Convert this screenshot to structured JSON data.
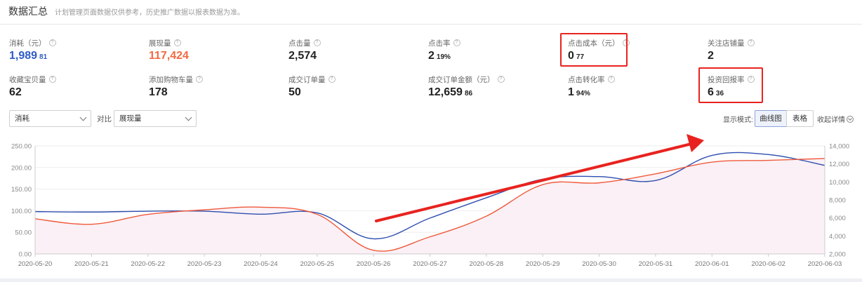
{
  "header": {
    "title": "数据汇总",
    "note": "计划管理页面数据仅供参考，历史推广数据以报表数据为准。"
  },
  "metrics": [
    {
      "label": "消耗（元）",
      "int": "1,989",
      "dec": "81"
    },
    {
      "label": "展现量",
      "int": "117,424",
      "dec": ""
    },
    {
      "label": "点击量",
      "int": "2,574",
      "dec": ""
    },
    {
      "label": "点击率",
      "int": "2",
      "dec": "19%"
    },
    {
      "label": "点击成本（元）",
      "int": "0",
      "dec": "77"
    },
    {
      "label": "关注店铺量",
      "int": "2",
      "dec": ""
    },
    {
      "label": "收藏宝贝量",
      "int": "62",
      "dec": ""
    },
    {
      "label": "添加购物车量",
      "int": "178",
      "dec": ""
    },
    {
      "label": "成交订单量",
      "int": "50",
      "dec": ""
    },
    {
      "label": "成交订单金额（元）",
      "int": "12,659",
      "dec": "86"
    },
    {
      "label": "点击转化率",
      "int": "1",
      "dec": "94%"
    },
    {
      "label": "投资回报率",
      "int": "6",
      "dec": "36"
    }
  ],
  "controls": {
    "metric_select": "消耗",
    "compare_label": "对比",
    "compare_select": "展现量",
    "mode_label": "显示模式:",
    "mode_curve": "曲线图",
    "mode_table": "表格",
    "collapse": "收起详情"
  },
  "colors": {
    "blue_series": "#2f4fb0",
    "orange_series": "#ef5a3c",
    "arrow": "#e8231f"
  },
  "chart_data": {
    "type": "line",
    "x": [
      "2020-05-20",
      "2020-05-21",
      "2020-05-22",
      "2020-05-23",
      "2020-05-24",
      "2020-05-25",
      "2020-05-26",
      "2020-05-27",
      "2020-05-28",
      "2020-05-29",
      "2020-05-30",
      "2020-05-31",
      "2020-06-01",
      "2020-06-02",
      "2020-06-03"
    ],
    "yleft_ticks": [
      "0.00",
      "50.00",
      "100.00",
      "150.00",
      "200.00",
      "250.00"
    ],
    "yleft_range": [
      0,
      250
    ],
    "yright_ticks": [
      "2,000",
      "4,000",
      "6,000",
      "8,000",
      "10,000",
      "12,000",
      "14,000"
    ],
    "yright_range": [
      2000,
      14000
    ],
    "series": [
      {
        "axis": "left",
        "values": [
          98,
          97,
          99,
          99,
          92,
          95,
          35,
          83,
          130,
          173,
          179,
          170,
          228,
          230,
          205
        ]
      },
      {
        "axis": "right",
        "values": [
          5900,
          5300,
          6400,
          6900,
          7200,
          6400,
          2400,
          3900,
          6200,
          9700,
          9900,
          10900,
          12200,
          12400,
          12600
        ]
      }
    ],
    "grid": true
  }
}
